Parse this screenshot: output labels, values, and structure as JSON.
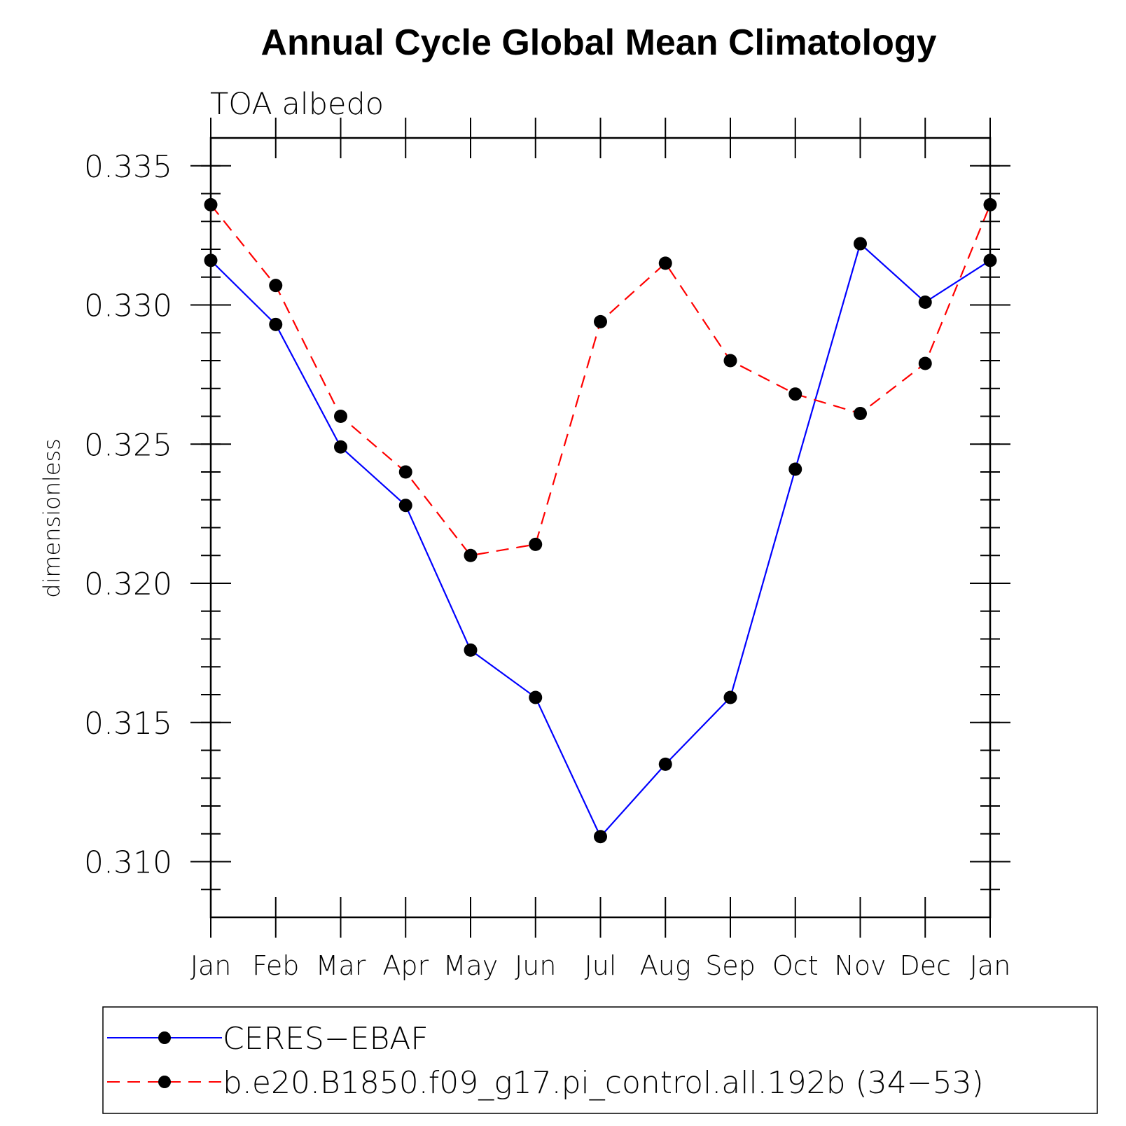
{
  "chart_data": {
    "type": "line",
    "title": "Annual Cycle Global Mean Climatology",
    "subtitle": "TOA albedo",
    "ylabel": "dimensionless",
    "xlabel": "",
    "categories": [
      "Jan",
      "Feb",
      "Mar",
      "Apr",
      "May",
      "Jun",
      "Jul",
      "Aug",
      "Sep",
      "Oct",
      "Nov",
      "Dec",
      "Jan"
    ],
    "ylim": [
      0.308,
      0.336
    ],
    "yticks": [
      0.31,
      0.315,
      0.32,
      0.325,
      0.33,
      0.335
    ],
    "ytick_labels": [
      "0.310",
      "0.315",
      "0.320",
      "0.325",
      "0.330",
      "0.335"
    ],
    "yminor_step": 0.001,
    "legend_position": "bottom",
    "series": [
      {
        "name": "CERES−EBAF",
        "color": "#0000ff",
        "style": "solid",
        "marker": "filled-circle",
        "values": [
          0.3316,
          0.3293,
          0.3249,
          0.3228,
          0.3176,
          0.3159,
          0.3109,
          0.3135,
          0.3159,
          0.3241,
          0.3322,
          0.3301,
          0.3316
        ]
      },
      {
        "name": "b.e20.B1850.f09_g17.pi_control.all.192b (34−53)",
        "color": "#ff0000",
        "style": "dashed",
        "marker": "filled-circle",
        "values": [
          0.3336,
          0.3307,
          0.326,
          0.324,
          0.321,
          0.3214,
          0.3294,
          0.3315,
          0.328,
          0.3268,
          0.3261,
          0.3279,
          0.3336
        ]
      }
    ]
  }
}
